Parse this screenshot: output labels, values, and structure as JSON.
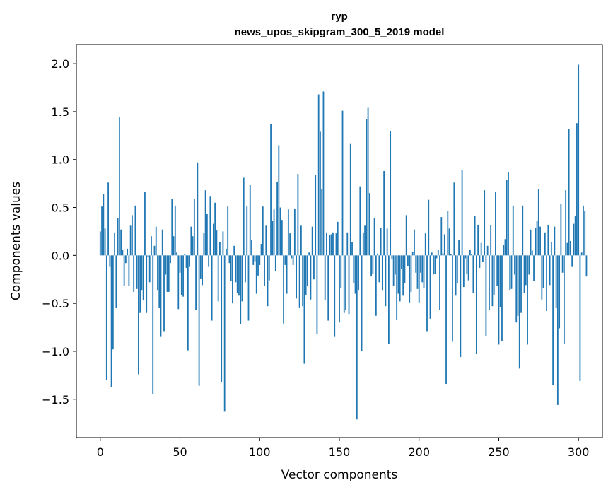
{
  "chart_data": {
    "type": "bar",
    "title": "гур",
    "subtitle": "news_upos_skipgram_300_5_2019 model",
    "xlabel": "Vector components",
    "ylabel": "Components values",
    "xlim": [
      -15,
      315
    ],
    "ylim": [
      -1.9,
      2.2
    ],
    "xticks": [
      0,
      50,
      100,
      150,
      200,
      250,
      300
    ],
    "yticks": [
      -1.5,
      -1.0,
      -0.5,
      0.0,
      0.5,
      1.0,
      1.5,
      2.0
    ],
    "ytick_labels": [
      "−1.5",
      "−1.0",
      "−0.5",
      "0.0",
      "0.5",
      "1.0",
      "1.5",
      "2.0"
    ],
    "grid": false,
    "bar_color": "#1f77b4",
    "values": [
      0.25,
      0.51,
      0.64,
      0.28,
      -1.3,
      0.76,
      -0.12,
      -1.37,
      -0.98,
      0.24,
      -0.55,
      0.39,
      1.44,
      0.27,
      0.06,
      -0.32,
      -0.08,
      0.07,
      -0.32,
      0.31,
      0.42,
      -0.38,
      0.52,
      -0.35,
      -1.24,
      -0.6,
      -0.36,
      -0.47,
      0.66,
      -0.6,
      -0.02,
      -0.28,
      0.2,
      -1.45,
      0.1,
      0.3,
      -0.36,
      -0.55,
      -0.85,
      0.27,
      -0.79,
      -0.2,
      -0.38,
      -0.38,
      -0.08,
      0.59,
      0.2,
      0.52,
      0.03,
      -0.56,
      -0.18,
      -0.41,
      -0.43,
      0.01,
      -0.13,
      -0.99,
      -0.12,
      0.3,
      0.2,
      0.59,
      -0.57,
      0.97,
      -1.36,
      -0.24,
      -0.31,
      0.23,
      0.68,
      0.43,
      -0.12,
      0.62,
      -0.68,
      0.33,
      0.55,
      0.26,
      -0.48,
      0.14,
      -1.32,
      0.25,
      -1.63,
      0.07,
      0.51,
      -0.08,
      -0.27,
      -0.5,
      0.1,
      -0.28,
      -0.39,
      -0.42,
      -0.72,
      -0.48,
      0.81,
      -0.28,
      0.51,
      -0.68,
      0.74,
      0.16,
      -0.1,
      -0.06,
      -0.4,
      -0.21,
      -0.1,
      0.12,
      0.51,
      -0.32,
      0.31,
      -0.53,
      -0.26,
      1.37,
      0.36,
      0.48,
      -0.16,
      0.77,
      1.15,
      0.5,
      0.37,
      -0.71,
      -0.1,
      -0.4,
      0.48,
      0.23,
      -0.03,
      -0.1,
      0.49,
      -0.45,
      0.85,
      -0.55,
      0.31,
      -0.53,
      -1.13,
      -0.41,
      -0.32,
      0.03,
      -0.46,
      0.3,
      -0.25,
      0.84,
      -0.82,
      1.68,
      1.29,
      0.69,
      1.71,
      -0.47,
      0.24,
      -0.68,
      0.21,
      0.22,
      0.24,
      -0.85,
      0.23,
      0.35,
      -0.7,
      -0.34,
      1.51,
      -0.6,
      -0.57,
      0.24,
      -0.61,
      1.17,
      0.14,
      -0.29,
      -0.4,
      -1.71,
      -0.36,
      0.72,
      -1.0,
      0.24,
      0.31,
      1.42,
      1.54,
      0.65,
      -0.22,
      -0.19,
      0.39,
      -0.63,
      0.02,
      -0.28,
      0.29,
      -0.36,
      0.88,
      -0.53,
      0.28,
      -0.92,
      1.3,
      -0.04,
      -0.32,
      -0.2,
      -0.67,
      -0.4,
      -0.48,
      -0.14,
      -0.42,
      -0.29,
      0.42,
      -0.11,
      -0.49,
      -0.38,
      0.04,
      0.27,
      -0.18,
      -0.35,
      -0.49,
      -0.18,
      -0.28,
      -0.34,
      0.23,
      -0.79,
      0.58,
      -0.66,
      0.03,
      -0.2,
      -0.19,
      -0.03,
      0.06,
      -0.57,
      0.4,
      0.02,
      0.22,
      -1.34,
      0.46,
      0.28,
      0.01,
      -0.9,
      0.76,
      -0.42,
      -0.29,
      0.16,
      -1.06,
      0.89,
      -0.33,
      -0.03,
      -0.19,
      -0.26,
      0.06,
      0.01,
      -0.39,
      0.41,
      -1.03,
      0.32,
      -0.13,
      0.13,
      -0.07,
      0.68,
      -0.84,
      0.1,
      -0.57,
      0.32,
      -0.53,
      -0.41,
      0.66,
      -0.32,
      -0.93,
      -0.54,
      -0.89,
      0.11,
      0.17,
      0.79,
      0.87,
      -0.36,
      -0.35,
      0.52,
      -0.2,
      -0.7,
      -0.63,
      -1.18,
      -0.6,
      0.52,
      -0.39,
      -0.31,
      -0.93,
      -0.2,
      0.27,
      0.05,
      -0.27,
      0.29,
      0.36,
      0.69,
      0.3,
      -0.46,
      -0.34,
      0.24,
      -0.58,
      0.32,
      -0.31,
      0.14,
      -1.35,
      0.3,
      -0.55,
      -1.56,
      -0.76,
      0.54,
      -0.18,
      -0.92,
      0.68,
      0.13,
      1.32,
      0.15,
      -0.12,
      0.33,
      0.41,
      1.38,
      1.99,
      -1.31,
      0.03,
      0.52,
      0.46,
      -0.22
    ]
  }
}
